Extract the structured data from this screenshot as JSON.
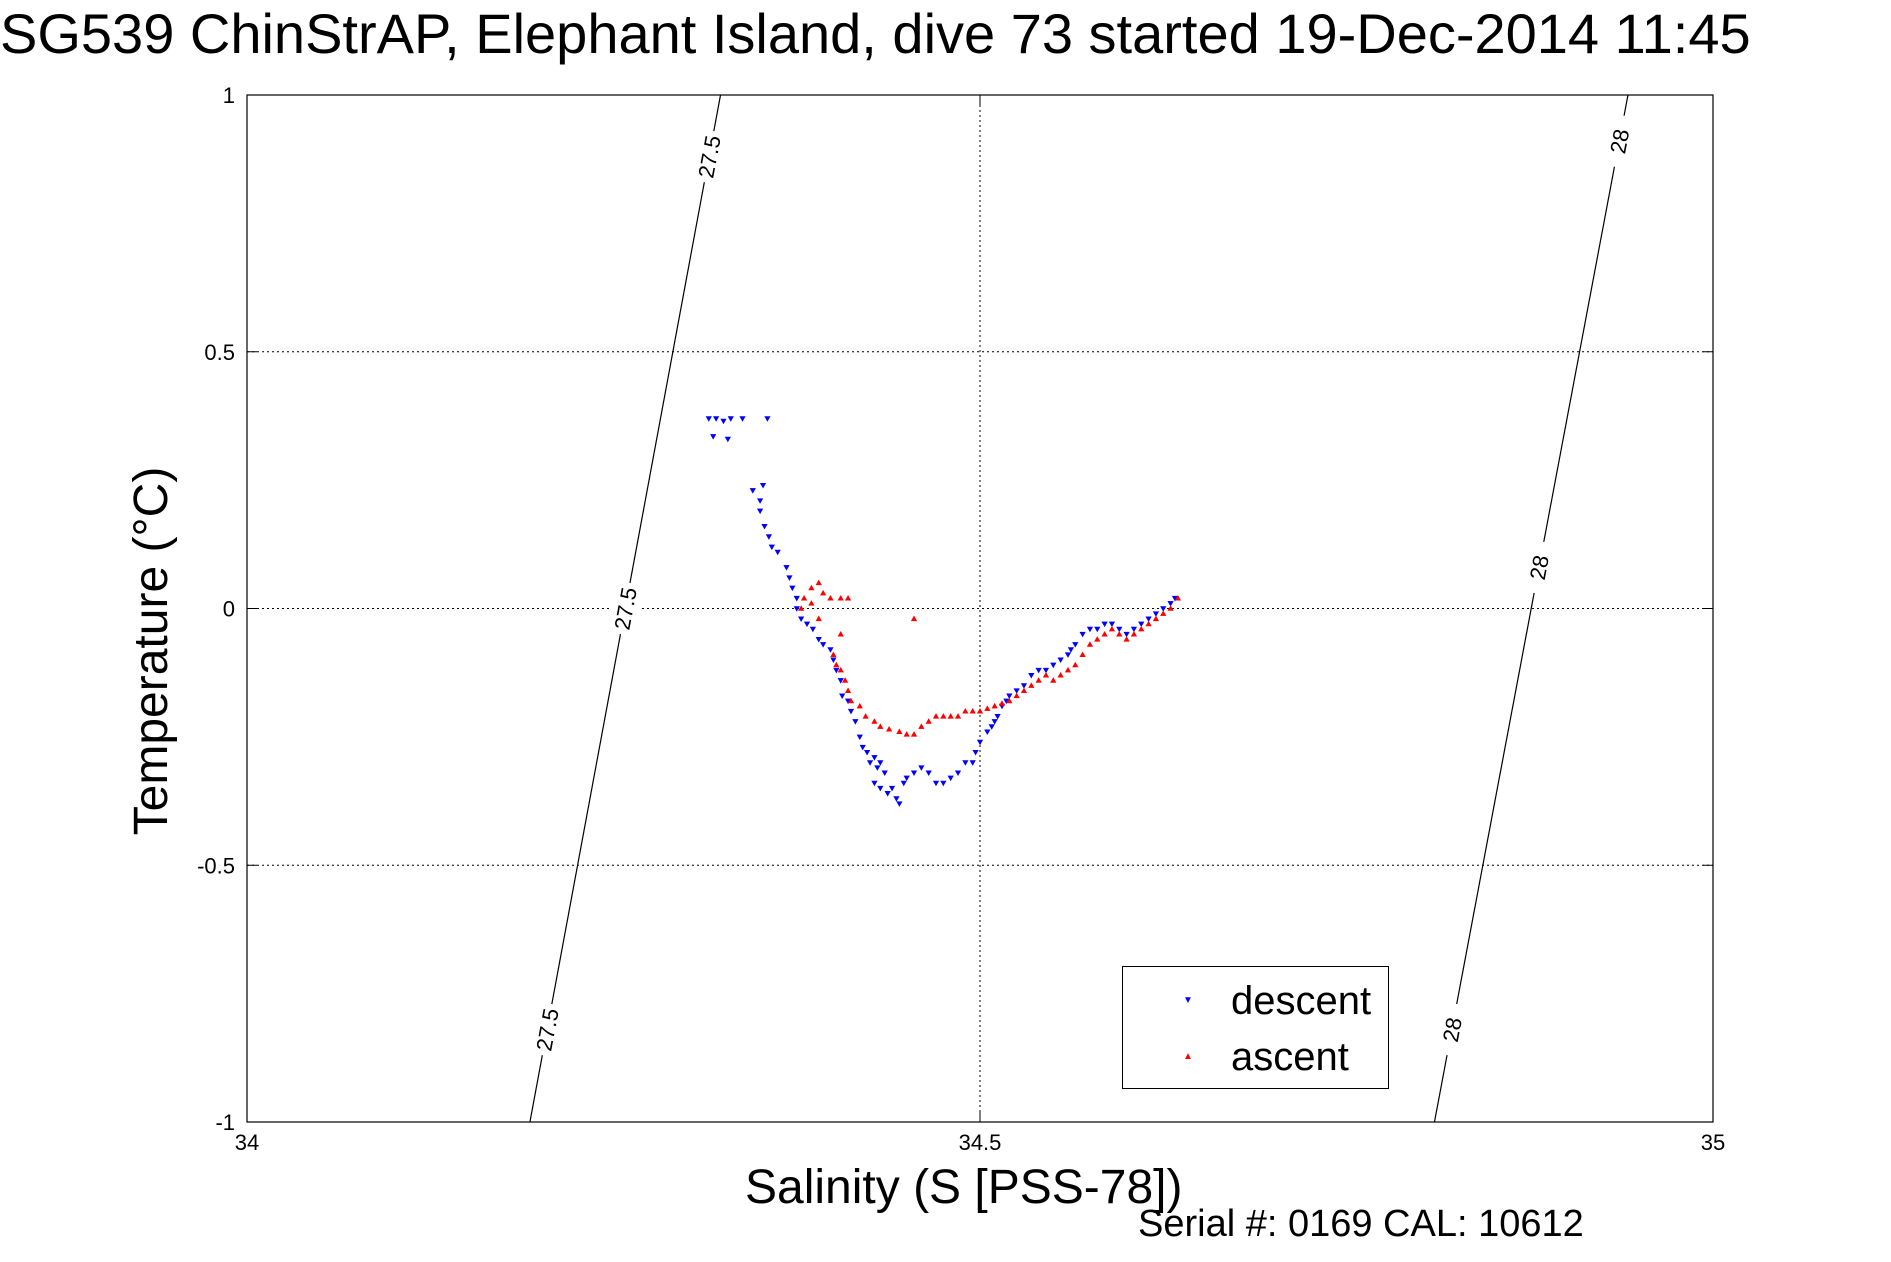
{
  "title": "SG539 ChinStrAP, Elephant Island, dive 73 started 19-Dec-2014 11:45",
  "footer": "Serial #: 0169 CAL: 10612",
  "chart_data": {
    "type": "scatter",
    "title": "SG539 ChinStrAP, Elephant Island, dive 73 started 19-Dec-2014 11:45",
    "xlabel": "Salinity (S [PSS-78])",
    "ylabel": "Temperature (°C)",
    "xlim": [
      34,
      35
    ],
    "ylim": [
      -1,
      1
    ],
    "xticks": [
      34,
      34.5,
      35
    ],
    "xtick_labels": [
      "34",
      "34.5",
      "35"
    ],
    "yticks": [
      -1,
      -0.5,
      0,
      0.5,
      1
    ],
    "ytick_labels": [
      "-1",
      "-0.5",
      "0",
      "0.5",
      "1"
    ],
    "grid": true,
    "legend_position": "bottom-right",
    "series": [
      {
        "name": "descent",
        "color": "#0000ff",
        "marker": "triangle-down",
        "points": [
          [
            34.315,
            0.37
          ],
          [
            34.32,
            0.37
          ],
          [
            34.325,
            0.365
          ],
          [
            34.33,
            0.37
          ],
          [
            34.338,
            0.37
          ],
          [
            34.355,
            0.37
          ],
          [
            34.318,
            0.335
          ],
          [
            34.328,
            0.33
          ],
          [
            34.345,
            0.23
          ],
          [
            34.352,
            0.24
          ],
          [
            34.35,
            0.21
          ],
          [
            34.35,
            0.19
          ],
          [
            34.353,
            0.16
          ],
          [
            34.356,
            0.14
          ],
          [
            34.358,
            0.12
          ],
          [
            34.362,
            0.11
          ],
          [
            34.368,
            0.08
          ],
          [
            34.37,
            0.06
          ],
          [
            34.372,
            0.04
          ],
          [
            34.375,
            0.02
          ],
          [
            34.375,
            0.0
          ],
          [
            34.378,
            -0.02
          ],
          [
            34.382,
            -0.03
          ],
          [
            34.386,
            -0.04
          ],
          [
            34.39,
            -0.06
          ],
          [
            34.393,
            -0.07
          ],
          [
            34.398,
            -0.08
          ],
          [
            34.4,
            -0.1
          ],
          [
            34.402,
            -0.12
          ],
          [
            34.405,
            -0.14
          ],
          [
            34.406,
            -0.17
          ],
          [
            34.41,
            -0.18
          ],
          [
            34.412,
            -0.2
          ],
          [
            34.415,
            -0.22
          ],
          [
            34.418,
            -0.25
          ],
          [
            34.42,
            -0.27
          ],
          [
            34.423,
            -0.28
          ],
          [
            34.425,
            -0.3
          ],
          [
            34.428,
            -0.29
          ],
          [
            34.43,
            -0.31
          ],
          [
            34.432,
            -0.3
          ],
          [
            34.435,
            -0.32
          ],
          [
            34.428,
            -0.34
          ],
          [
            34.432,
            -0.35
          ],
          [
            34.437,
            -0.36
          ],
          [
            34.44,
            -0.35
          ],
          [
            34.443,
            -0.37
          ],
          [
            34.445,
            -0.38
          ],
          [
            34.448,
            -0.34
          ],
          [
            34.45,
            -0.33
          ],
          [
            34.455,
            -0.32
          ],
          [
            34.46,
            -0.31
          ],
          [
            34.465,
            -0.32
          ],
          [
            34.47,
            -0.34
          ],
          [
            34.475,
            -0.34
          ],
          [
            34.48,
            -0.33
          ],
          [
            34.485,
            -0.32
          ],
          [
            34.49,
            -0.3
          ],
          [
            34.495,
            -0.3
          ],
          [
            34.497,
            -0.28
          ],
          [
            34.5,
            -0.26
          ],
          [
            34.505,
            -0.24
          ],
          [
            34.508,
            -0.23
          ],
          [
            34.51,
            -0.22
          ],
          [
            34.512,
            -0.21
          ],
          [
            34.515,
            -0.19
          ],
          [
            34.518,
            -0.18
          ],
          [
            34.52,
            -0.17
          ],
          [
            34.525,
            -0.16
          ],
          [
            34.53,
            -0.15
          ],
          [
            34.535,
            -0.13
          ],
          [
            34.54,
            -0.12
          ],
          [
            34.545,
            -0.12
          ],
          [
            34.55,
            -0.11
          ],
          [
            34.555,
            -0.1
          ],
          [
            34.56,
            -0.09
          ],
          [
            34.562,
            -0.08
          ],
          [
            34.565,
            -0.07
          ],
          [
            34.57,
            -0.05
          ],
          [
            34.575,
            -0.04
          ],
          [
            34.58,
            -0.04
          ],
          [
            34.585,
            -0.03
          ],
          [
            34.59,
            -0.03
          ],
          [
            34.595,
            -0.04
          ],
          [
            34.6,
            -0.05
          ],
          [
            34.605,
            -0.04
          ],
          [
            34.61,
            -0.03
          ],
          [
            34.615,
            -0.02
          ],
          [
            34.62,
            -0.01
          ],
          [
            34.625,
            0.0
          ],
          [
            34.63,
            0.01
          ],
          [
            34.633,
            0.02
          ]
        ]
      },
      {
        "name": "ascent",
        "color": "#ff0000",
        "marker": "triangle-up",
        "points": [
          [
            34.38,
            0.02
          ],
          [
            34.385,
            0.04
          ],
          [
            34.39,
            0.05
          ],
          [
            34.393,
            0.03
          ],
          [
            34.398,
            0.02
          ],
          [
            34.405,
            0.02
          ],
          [
            34.41,
            0.02
          ],
          [
            34.385,
            0.01
          ],
          [
            34.378,
            0.0
          ],
          [
            34.39,
            -0.02
          ],
          [
            34.405,
            -0.05
          ],
          [
            34.455,
            -0.02
          ],
          [
            34.4,
            -0.09
          ],
          [
            34.402,
            -0.11
          ],
          [
            34.405,
            -0.12
          ],
          [
            34.408,
            -0.14
          ],
          [
            34.41,
            -0.16
          ],
          [
            34.412,
            -0.18
          ],
          [
            34.418,
            -0.19
          ],
          [
            34.422,
            -0.21
          ],
          [
            34.428,
            -0.22
          ],
          [
            34.432,
            -0.23
          ],
          [
            34.438,
            -0.235
          ],
          [
            34.445,
            -0.24
          ],
          [
            34.45,
            -0.245
          ],
          [
            34.455,
            -0.245
          ],
          [
            34.46,
            -0.23
          ],
          [
            34.465,
            -0.22
          ],
          [
            34.47,
            -0.21
          ],
          [
            34.475,
            -0.21
          ],
          [
            34.48,
            -0.21
          ],
          [
            34.485,
            -0.21
          ],
          [
            34.49,
            -0.2
          ],
          [
            34.495,
            -0.2
          ],
          [
            34.5,
            -0.2
          ],
          [
            34.505,
            -0.195
          ],
          [
            34.51,
            -0.19
          ],
          [
            34.515,
            -0.185
          ],
          [
            34.52,
            -0.18
          ],
          [
            34.525,
            -0.17
          ],
          [
            34.53,
            -0.16
          ],
          [
            34.535,
            -0.15
          ],
          [
            34.54,
            -0.14
          ],
          [
            34.545,
            -0.13
          ],
          [
            34.55,
            -0.14
          ],
          [
            34.555,
            -0.13
          ],
          [
            34.56,
            -0.12
          ],
          [
            34.565,
            -0.11
          ],
          [
            34.57,
            -0.09
          ],
          [
            34.575,
            -0.07
          ],
          [
            34.58,
            -0.06
          ],
          [
            34.585,
            -0.05
          ],
          [
            34.59,
            -0.04
          ],
          [
            34.595,
            -0.05
          ],
          [
            34.6,
            -0.06
          ],
          [
            34.605,
            -0.05
          ],
          [
            34.61,
            -0.04
          ],
          [
            34.615,
            -0.03
          ],
          [
            34.62,
            -0.02
          ],
          [
            34.625,
            -0.01
          ],
          [
            34.63,
            0.0
          ],
          [
            34.635,
            0.02
          ]
        ]
      }
    ],
    "contours": [
      {
        "label": "27.5",
        "points": [
          [
            34.193,
            -1
          ],
          [
            34.323,
            1
          ]
        ],
        "label_y": [
          -0.82,
          0.0,
          0.88
        ]
      },
      {
        "label": "28",
        "points": [
          [
            34.81,
            -1
          ],
          [
            34.942,
            1
          ]
        ],
        "label_y": [
          -0.82,
          0.08,
          0.91
        ]
      }
    ]
  },
  "legend": {
    "items": [
      {
        "label": "descent",
        "symbol": "▼",
        "color": "#0000ff"
      },
      {
        "label": "ascent",
        "symbol": "▲",
        "color": "#ff0000"
      }
    ]
  }
}
